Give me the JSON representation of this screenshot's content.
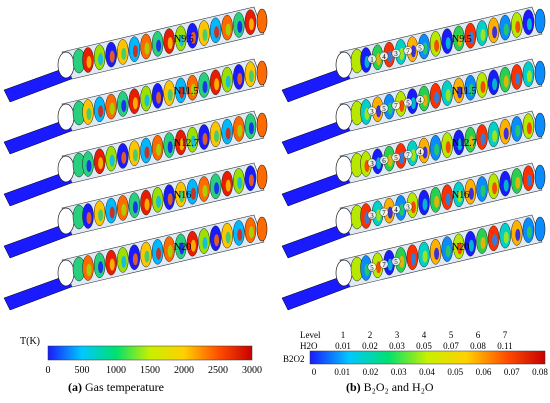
{
  "panel_a": {
    "cases": [
      "N9.5",
      "N11.5",
      "N12.7",
      "N16",
      "N20"
    ],
    "colorbar": {
      "title": "T(K)",
      "ticks": [
        "0",
        "500",
        "1000",
        "1500",
        "2000",
        "2500",
        "3000"
      ],
      "colors": [
        "#1a1aff",
        "#00c8ff",
        "#00e070",
        "#c8f000",
        "#ffd000",
        "#ff5000",
        "#c80000"
      ]
    },
    "caption_letter": "(a)",
    "caption_text": "Gas temperature"
  },
  "panel_b": {
    "cases": [
      "N9.5",
      "N11.5",
      "N12.7",
      "N16",
      "N20"
    ],
    "legend_table": {
      "header": "Level",
      "row_label": "H2O",
      "levels": [
        "1",
        "2",
        "3",
        "4",
        "5",
        "6",
        "7"
      ],
      "h2o_values": [
        "0.01",
        "0.02",
        "0.03",
        "0.05",
        "0.07",
        "0.08",
        "0.11"
      ]
    },
    "colorbar": {
      "title": "B2O2",
      "ticks": [
        "0",
        "0.01",
        "0.02",
        "0.03",
        "0.04",
        "0.05",
        "0.06",
        "0.07",
        "0.08"
      ],
      "colors": [
        "#1a1aff",
        "#00c8ff",
        "#00e070",
        "#c8f000",
        "#ffd000",
        "#ff5000",
        "#c80000"
      ]
    },
    "contour_labels": [
      [
        "1",
        "4",
        "3",
        "7",
        "5"
      ],
      [
        "3",
        "5",
        "7",
        "5",
        "4"
      ],
      [
        "3",
        "6",
        "5",
        "7",
        "4"
      ],
      [
        "3",
        "7",
        "4",
        "3"
      ],
      [
        "5",
        "7",
        "5"
      ]
    ],
    "caption_letter": "(b)",
    "caption_text": "B₂O₂ and H₂O"
  }
}
